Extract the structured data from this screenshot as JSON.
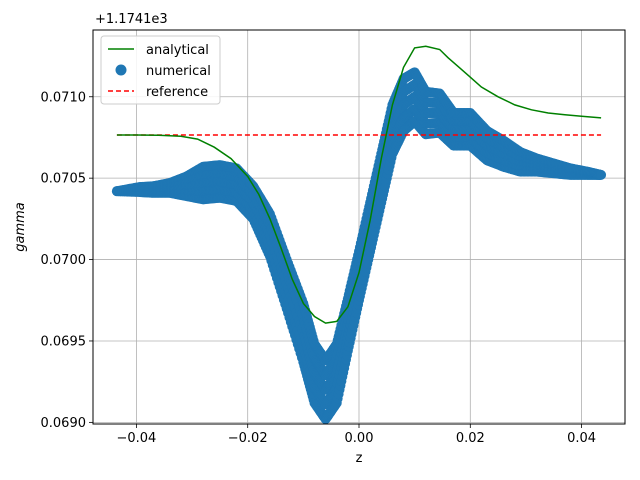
{
  "chart_data": {
    "type": "line",
    "title": "",
    "xlabel": "z",
    "ylabel": "gamma",
    "y_offset_label": "+1.1741e3",
    "xlim": [
      -0.0478,
      0.0478
    ],
    "ylim": [
      0.06899,
      0.07141
    ],
    "grid": true,
    "legend_position": "top-left",
    "x_ticks": [
      -0.04,
      -0.02,
      0.0,
      0.02,
      0.04
    ],
    "x_tick_labels": [
      "−0.04",
      "−0.02",
      "0.00",
      "0.02",
      "0.04"
    ],
    "y_ticks": [
      0.069,
      0.0695,
      0.07,
      0.0705,
      0.071
    ],
    "y_tick_labels": [
      "0.0690",
      "0.0695",
      "0.0700",
      "0.0705",
      "0.0710"
    ],
    "series": [
      {
        "name": "analytical",
        "kind": "line",
        "color": "#008000",
        "x": [
          -0.0435,
          -0.04,
          -0.036,
          -0.032,
          -0.029,
          -0.026,
          -0.023,
          -0.02,
          -0.018,
          -0.016,
          -0.014,
          -0.012,
          -0.01,
          -0.008,
          -0.006,
          -0.004,
          -0.002,
          0.0,
          0.002,
          0.004,
          0.006,
          0.008,
          0.01,
          0.012,
          0.0145,
          0.016,
          0.018,
          0.02,
          0.022,
          0.025,
          0.028,
          0.031,
          0.034,
          0.037,
          0.04,
          0.0435
        ],
        "y": [
          0.070765,
          0.070765,
          0.070763,
          0.070757,
          0.07074,
          0.07069,
          0.07062,
          0.07051,
          0.0704,
          0.07025,
          0.07007,
          0.06988,
          0.06973,
          0.06965,
          0.06961,
          0.06962,
          0.06971,
          0.06992,
          0.07024,
          0.07062,
          0.07095,
          0.07118,
          0.0713,
          0.07131,
          0.07129,
          0.07124,
          0.07118,
          0.07112,
          0.07106,
          0.071,
          0.07095,
          0.07092,
          0.0709,
          0.07089,
          0.07088,
          0.07087
        ]
      },
      {
        "name": "numerical",
        "kind": "scatter",
        "color": "#1f77b4",
        "x": [
          -0.0435,
          -0.0395,
          -0.037,
          -0.034,
          -0.031,
          -0.028,
          -0.025,
          -0.022,
          -0.019,
          -0.016,
          -0.013,
          -0.01,
          -0.008,
          -0.006,
          -0.004,
          -0.002,
          0.0,
          0.002,
          0.004,
          0.006,
          0.008,
          0.01,
          0.012,
          0.0145,
          0.017,
          0.02,
          0.023,
          0.026,
          0.029,
          0.032,
          0.035,
          0.038,
          0.041,
          0.0435
        ],
        "y": [
          0.07042,
          0.07043,
          0.07043,
          0.07044,
          0.07045,
          0.07047,
          0.07048,
          0.07046,
          0.07035,
          0.07015,
          0.06985,
          0.06955,
          0.0693,
          0.0692,
          0.0693,
          0.0696,
          0.0699,
          0.0702,
          0.0705,
          0.0708,
          0.07095,
          0.071,
          0.0709,
          0.0709,
          0.0708,
          0.0708,
          0.0707,
          0.07065,
          0.0706,
          0.07058,
          0.07056,
          0.07054,
          0.07053,
          0.07052
        ],
        "spread": [
          0,
          1.5e-05,
          2e-05,
          3e-05,
          6e-05,
          0.0001,
          0.0001,
          0.0001,
          0.0001,
          0.00013,
          0.00015,
          0.00018,
          0.00018,
          0.00018,
          0.00018,
          0.00016,
          0.00015,
          0.00015,
          0.00015,
          0.00015,
          0.00016,
          0.00015,
          0.00013,
          0.00012,
          0.0001,
          0.0001,
          9e-05,
          8e-05,
          6e-05,
          4e-05,
          3e-05,
          2e-05,
          1e-05,
          0
        ]
      },
      {
        "name": "reference",
        "kind": "dashed-line",
        "color": "#ff0000",
        "x": [
          -0.0435,
          0.0435
        ],
        "y": [
          0.070765,
          0.070765
        ]
      }
    ]
  }
}
